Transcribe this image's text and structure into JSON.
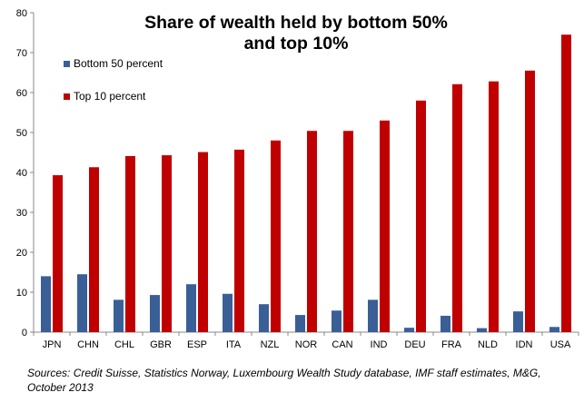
{
  "chart_data": {
    "type": "bar",
    "title_lines": [
      "Share of wealth  held by bottom 50%",
      "and top 10%"
    ],
    "categories": [
      "JPN",
      "CHN",
      "CHL",
      "GBR",
      "ESP",
      "ITA",
      "NZL",
      "NOR",
      "CAN",
      "IND",
      "DEU",
      "FRA",
      "NLD",
      "IDN",
      "USA"
    ],
    "series": [
      {
        "name": "Bottom 50 percent",
        "color": "#3A5F97",
        "values": [
          14.0,
          14.5,
          8.1,
          9.3,
          12.0,
          9.6,
          7.0,
          4.3,
          5.4,
          8.1,
          1.1,
          4.1,
          1.0,
          5.2,
          1.3
        ]
      },
      {
        "name": "Top 10 percent",
        "color": "#C00000",
        "values": [
          39.3,
          41.3,
          44.1,
          44.3,
          45.1,
          45.7,
          48.0,
          50.4,
          50.4,
          53.0,
          58.0,
          62.1,
          62.8,
          65.5,
          74.5
        ]
      }
    ],
    "ylim": [
      0,
      80
    ],
    "yticks": [
      "0",
      "10",
      "20",
      "30",
      "40",
      "50",
      "60",
      "70",
      "80"
    ],
    "grid": false,
    "legend_position": "upper-left"
  },
  "source_note": "Sources: Credit  Suisse, Statistics Norway,  Luxembourg  Wealth Study database,  IMF staff estimates, M&G,  October 2013"
}
